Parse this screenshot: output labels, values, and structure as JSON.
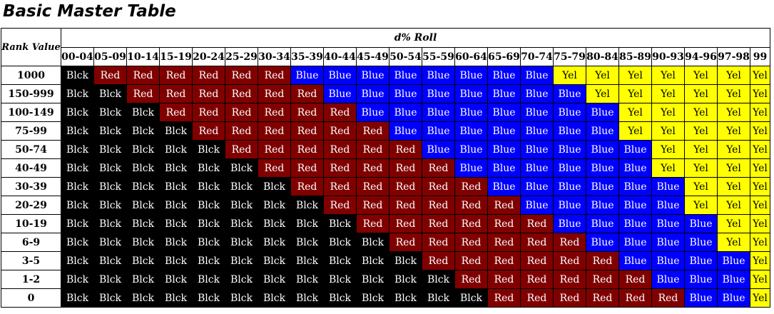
{
  "title": "Basic Master Table",
  "table": {
    "rank_header": "Rank Value",
    "roll_header": "d% Roll",
    "columns": [
      "00-04",
      "05-09",
      "10-14",
      "15-19",
      "20-24",
      "25-29",
      "30-34",
      "35-39",
      "40-44",
      "45-49",
      "50-54",
      "55-59",
      "60-64",
      "65-69",
      "70-74",
      "75-79",
      "80-84",
      "85-89",
      "90-93",
      "94-96",
      "97-98",
      "99"
    ],
    "rows": [
      {
        "rank": "1000",
        "cells": [
          "Blck",
          "Red",
          "Red",
          "Red",
          "Red",
          "Red",
          "Red",
          "Blue",
          "Blue",
          "Blue",
          "Blue",
          "Blue",
          "Blue",
          "Blue",
          "Blue",
          "Yel",
          "Yel",
          "Yel",
          "Yel",
          "Yel",
          "Yel",
          "Yel"
        ]
      },
      {
        "rank": "150-999",
        "cells": [
          "Blck",
          "Blck",
          "Red",
          "Red",
          "Red",
          "Red",
          "Red",
          "Red",
          "Blue",
          "Blue",
          "Blue",
          "Blue",
          "Blue",
          "Blue",
          "Blue",
          "Blue",
          "Yel",
          "Yel",
          "Yel",
          "Yel",
          "Yel",
          "Yel"
        ]
      },
      {
        "rank": "100-149",
        "cells": [
          "Blck",
          "Blck",
          "Blck",
          "Red",
          "Red",
          "Red",
          "Red",
          "Red",
          "Red",
          "Blue",
          "Blue",
          "Blue",
          "Blue",
          "Blue",
          "Blue",
          "Blue",
          "Blue",
          "Yel",
          "Yel",
          "Yel",
          "Yel",
          "Yel"
        ]
      },
      {
        "rank": "75-99",
        "cells": [
          "Blck",
          "Blck",
          "Blck",
          "Blck",
          "Red",
          "Red",
          "Red",
          "Red",
          "Red",
          "Red",
          "Blue",
          "Blue",
          "Blue",
          "Blue",
          "Blue",
          "Blue",
          "Blue",
          "Yel",
          "Yel",
          "Yel",
          "Yel",
          "Yel"
        ]
      },
      {
        "rank": "50-74",
        "cells": [
          "Blck",
          "Blck",
          "Blck",
          "Blck",
          "Blck",
          "Red",
          "Red",
          "Red",
          "Red",
          "Red",
          "Red",
          "Blue",
          "Blue",
          "Blue",
          "Blue",
          "Blue",
          "Blue",
          "Blue",
          "Yel",
          "Yel",
          "Yel",
          "Yel"
        ]
      },
      {
        "rank": "40-49",
        "cells": [
          "Blck",
          "Blck",
          "Blck",
          "Blck",
          "Blck",
          "Blck",
          "Red",
          "Red",
          "Red",
          "Red",
          "Red",
          "Red",
          "Blue",
          "Blue",
          "Blue",
          "Blue",
          "Blue",
          "Blue",
          "Yel",
          "Yel",
          "Yel",
          "Yel"
        ]
      },
      {
        "rank": "30-39",
        "cells": [
          "Blck",
          "Blck",
          "Blck",
          "Blck",
          "Blck",
          "Blck",
          "Blck",
          "Red",
          "Red",
          "Red",
          "Red",
          "Red",
          "Red",
          "Blue",
          "Blue",
          "Blue",
          "Blue",
          "Blue",
          "Blue",
          "Yel",
          "Yel",
          "Yel"
        ]
      },
      {
        "rank": "20-29",
        "cells": [
          "Blck",
          "Blck",
          "Blck",
          "Blck",
          "Blck",
          "Blck",
          "Blck",
          "Blck",
          "Red",
          "Red",
          "Red",
          "Red",
          "Red",
          "Red",
          "Blue",
          "Blue",
          "Blue",
          "Blue",
          "Blue",
          "Yel",
          "Yel",
          "Yel"
        ]
      },
      {
        "rank": "10-19",
        "cells": [
          "Blck",
          "Blck",
          "Blck",
          "Blck",
          "Blck",
          "Blck",
          "Blck",
          "Blck",
          "Blck",
          "Red",
          "Red",
          "Red",
          "Red",
          "Red",
          "Red",
          "Blue",
          "Blue",
          "Blue",
          "Blue",
          "Blue",
          "Yel",
          "Yel"
        ]
      },
      {
        "rank": "6-9",
        "cells": [
          "Blck",
          "Blck",
          "Blck",
          "Blck",
          "Blck",
          "Blck",
          "Blck",
          "Blck",
          "Blck",
          "Blck",
          "Red",
          "Red",
          "Red",
          "Red",
          "Red",
          "Red",
          "Blue",
          "Blue",
          "Blue",
          "Blue",
          "Yel",
          "Yel"
        ]
      },
      {
        "rank": "3-5",
        "cells": [
          "Blck",
          "Blck",
          "Blck",
          "Blck",
          "Blck",
          "Blck",
          "Blck",
          "Blck",
          "Blck",
          "Blck",
          "Blck",
          "Red",
          "Red",
          "Red",
          "Red",
          "Red",
          "Red",
          "Blue",
          "Blue",
          "Blue",
          "Blue",
          "Yel"
        ]
      },
      {
        "rank": "1-2",
        "cells": [
          "Blck",
          "Blck",
          "Blck",
          "Blck",
          "Blck",
          "Blck",
          "Blck",
          "Blck",
          "Blck",
          "Blck",
          "Blck",
          "Blck",
          "Red",
          "Red",
          "Red",
          "Red",
          "Red",
          "Red",
          "Blue",
          "Blue",
          "Blue",
          "Yel"
        ]
      },
      {
        "rank": "0",
        "cells": [
          "Blck",
          "Blck",
          "Blck",
          "Blck",
          "Blck",
          "Blck",
          "Blck",
          "Blck",
          "Blck",
          "Blck",
          "Blck",
          "Blck",
          "Blck",
          "Red",
          "Red",
          "Red",
          "Red",
          "Red",
          "Red",
          "Blue",
          "Blue",
          "Yel"
        ]
      }
    ]
  },
  "colors": {
    "Blck": "#000000",
    "Red": "#800000",
    "Blue": "#0000ff",
    "Yel": "#ffff00"
  }
}
